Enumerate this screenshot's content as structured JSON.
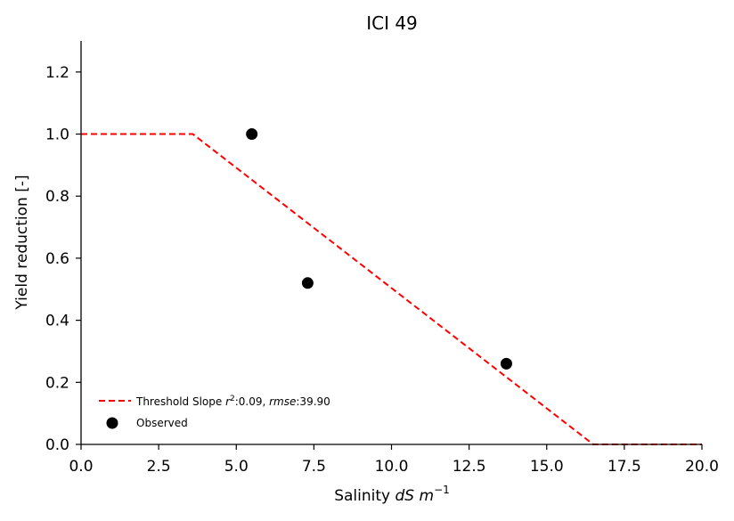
{
  "chart_data": {
    "type": "line",
    "title": "ICI 49",
    "xlabel": {
      "prefix": "Salinity ",
      "italic": "dS m",
      "sup": "−1"
    },
    "ylabel": "Yield reduction [-]",
    "xlim": [
      0,
      20
    ],
    "ylim": [
      0,
      1.3
    ],
    "xticks": [
      0,
      2.5,
      5,
      7.5,
      10,
      12.5,
      15,
      17.5,
      20
    ],
    "xtick_labels": [
      "0.0",
      "2.5",
      "5.0",
      "7.5",
      "10.0",
      "12.5",
      "15.0",
      "17.5",
      "20.0"
    ],
    "yticks": [
      0,
      0.2,
      0.4,
      0.6,
      0.8,
      1.0,
      1.2
    ],
    "ytick_labels": [
      "0.0",
      "0.2",
      "0.4",
      "0.6",
      "0.8",
      "1.0",
      "1.2"
    ],
    "grid": false,
    "legend_position": "bottom-left",
    "series": [
      {
        "name": "Threshold Slope r²:0.09, rmse:39.90",
        "legend": {
          "prefix": "Threshold Slope ",
          "r_label": "r",
          "r_sup": "2",
          "r_value": ":0.09, ",
          "rmse_label": "rmse",
          "rmse_value": ":39.90"
        },
        "kind": "line",
        "style": "dashed",
        "color": "#ff0000",
        "x": [
          0,
          3.6,
          16.5,
          20
        ],
        "y": [
          1.0,
          1.0,
          0.0,
          0.0
        ]
      },
      {
        "name": "Observed",
        "kind": "scatter",
        "color": "#000000",
        "x": [
          5.5,
          7.3,
          13.7
        ],
        "y": [
          1.0,
          0.52,
          0.26
        ]
      }
    ]
  }
}
